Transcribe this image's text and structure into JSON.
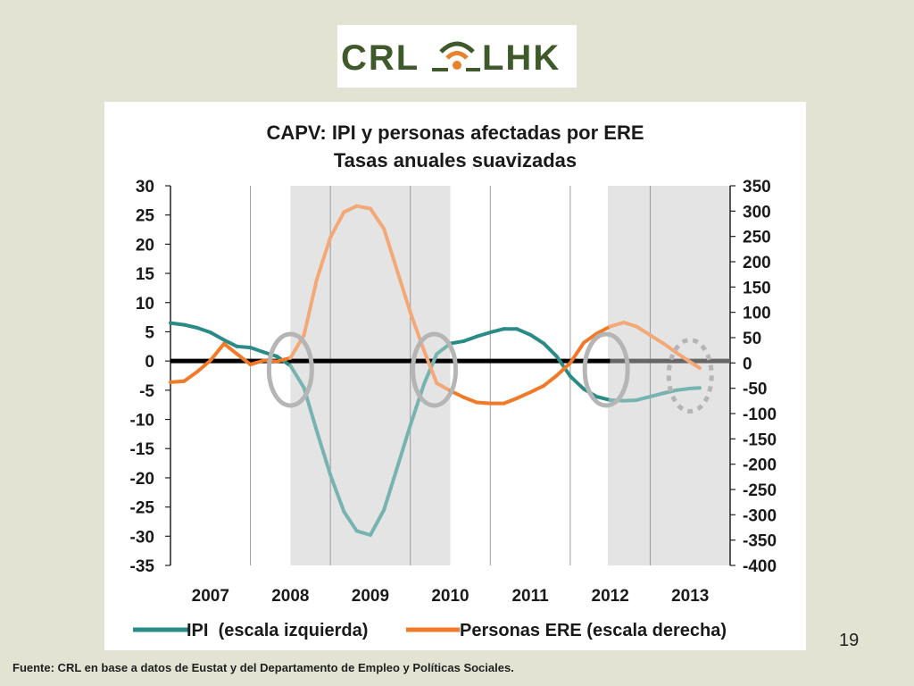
{
  "logo": {
    "text_left": "CRL",
    "text_right": "LHK",
    "colors": {
      "green": "#3f5a2a",
      "orange": "#e8832a"
    }
  },
  "page_number": "19",
  "source_note": "Fuente: CRL en base a datos de Eustat y del Departamento de Empleo y Políticas Sociales.",
  "chart_data": {
    "type": "line",
    "title": "CAPV: IPI y personas afectadas por ERE",
    "subtitle": "Tasas anuales suavizadas",
    "x_tick_labels": [
      "2007",
      "2008",
      "2009",
      "2010",
      "2011",
      "2012",
      "2013"
    ],
    "x_range": [
      2006.5,
      2013.5
    ],
    "y_left": {
      "range": [
        -35,
        30
      ],
      "ticks": [
        30,
        25,
        20,
        15,
        10,
        5,
        0,
        -5,
        -10,
        -15,
        -20,
        -25,
        -30,
        -35
      ]
    },
    "y_right": {
      "range": [
        -400,
        350
      ],
      "ticks": [
        350,
        300,
        250,
        200,
        150,
        100,
        50,
        0,
        -50,
        -100,
        -150,
        -200,
        -250,
        -300,
        -350,
        -400
      ]
    },
    "shaded_periods": [
      [
        2008.0,
        2010.0
      ],
      [
        2011.97,
        2013.5
      ]
    ],
    "highlight_circles": [
      2008.0,
      2009.8,
      2011.95
    ],
    "dotted_circle": 2013.0,
    "legend_position": "bottom",
    "colors": {
      "ipi": "#2a8b86",
      "ipi_light": "#77b4b0",
      "ere": "#f07a28",
      "ere_light": "#f2a877",
      "shade": "#e4e4e4",
      "circle": "#b5b5b5"
    },
    "series": [
      {
        "name": "IPI  (escala izquierda)",
        "axis": "left",
        "x": [
          2006.5,
          2006.67,
          2006.83,
          2007.0,
          2007.17,
          2007.33,
          2007.5,
          2007.67,
          2007.83,
          2008.0,
          2008.17,
          2008.33,
          2008.5,
          2008.67,
          2008.83,
          2009.0,
          2009.17,
          2009.33,
          2009.5,
          2009.67,
          2009.83,
          2010.0,
          2010.17,
          2010.33,
          2010.5,
          2010.67,
          2010.83,
          2011.0,
          2011.17,
          2011.33,
          2011.5,
          2011.67,
          2011.83,
          2012.0,
          2012.17,
          2012.33,
          2012.5,
          2012.67,
          2012.83,
          2013.0,
          2013.12
        ],
        "values": [
          6.5,
          6.2,
          5.7,
          4.9,
          3.6,
          2.5,
          2.3,
          1.5,
          0.8,
          -0.8,
          -4.6,
          -12,
          -19.5,
          -25.8,
          -29.1,
          -29.8,
          -25.5,
          -18.5,
          -11,
          -4,
          1.2,
          3.0,
          3.4,
          4.2,
          4.9,
          5.5,
          5.5,
          4.5,
          3.0,
          0.8,
          -2.6,
          -4.8,
          -6.1,
          -6.7,
          -6.8,
          -6.7,
          -6.1,
          -5.5,
          -5.0,
          -4.7,
          -4.6
        ]
      },
      {
        "name": "Personas ERE (escala derecha)",
        "axis": "right",
        "x": [
          2006.5,
          2006.67,
          2006.83,
          2007.0,
          2007.17,
          2007.33,
          2007.5,
          2007.67,
          2007.83,
          2008.0,
          2008.17,
          2008.33,
          2008.5,
          2008.67,
          2008.83,
          2009.0,
          2009.17,
          2009.33,
          2009.5,
          2009.67,
          2009.83,
          2010.0,
          2010.17,
          2010.33,
          2010.5,
          2010.67,
          2010.83,
          2011.0,
          2011.17,
          2011.33,
          2011.5,
          2011.67,
          2011.83,
          2012.0,
          2012.17,
          2012.33,
          2012.5,
          2012.67,
          2012.83,
          2013.0,
          2013.12
        ],
        "values": [
          -38,
          -36,
          -18,
          5,
          38,
          18,
          -3,
          5,
          3,
          10,
          55,
          165,
          248,
          298,
          310,
          305,
          265,
          185,
          100,
          25,
          -40,
          -55,
          -68,
          -78,
          -80,
          -80,
          -70,
          -58,
          -45,
          -25,
          0,
          40,
          58,
          72,
          80,
          72,
          55,
          38,
          20,
          2,
          -10
        ]
      }
    ]
  }
}
